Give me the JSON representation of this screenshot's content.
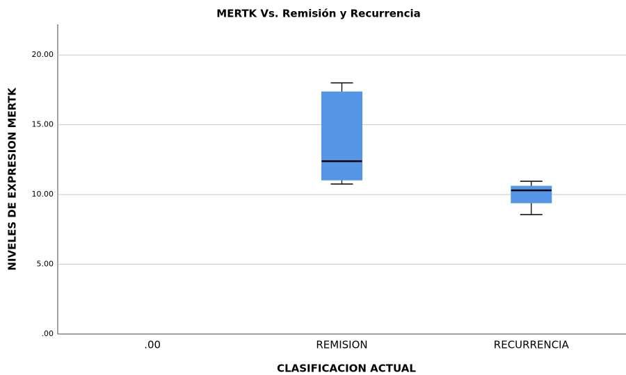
{
  "chart_data": {
    "type": "box",
    "title": "MERTK Vs. Remisión y Recurrencia",
    "x_label": "CLASIFICACION ACTUAL",
    "y_label": "NIVELES DE EXPRESION MERTK",
    "categories": [
      ".00",
      "REMISION",
      "RECURRENCIA"
    ],
    "min": [
      null,
      10.75,
      8.56
    ],
    "q1": [
      null,
      11.04,
      9.4
    ],
    "median": [
      null,
      12.39,
      10.3
    ],
    "q3": [
      null,
      17.36,
      10.6
    ],
    "max": [
      null,
      18.0,
      10.95
    ],
    "color": "#5596e6",
    "ylim": [
      0,
      22.2
    ],
    "yticks": [
      {
        "value": 0,
        "label": ".00"
      },
      {
        "value": 5,
        "label": "5.00"
      },
      {
        "value": 10,
        "label": "10.00"
      },
      {
        "value": 15,
        "label": "15.00"
      },
      {
        "value": 20,
        "label": "20.00"
      }
    ],
    "grid": true
  }
}
